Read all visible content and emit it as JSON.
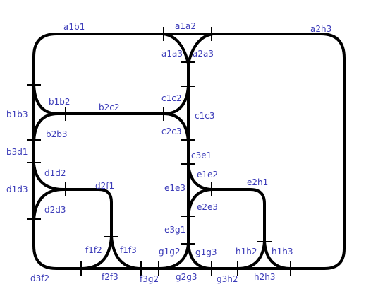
{
  "colors": {
    "track": "#000000",
    "label": "#3a3ab8",
    "background": "#ffffff"
  },
  "labels": {
    "a1b1": "a1b1",
    "a1a2": "a1a2",
    "a2h3": "a2h3",
    "a1a3": "a1a3",
    "a2a3": "a2a3",
    "b1b3": "b1b3",
    "b1b2": "b1b2",
    "b2c2": "b2c2",
    "c1c2": "c1c2",
    "c1c3": "c1c3",
    "b2b3": "b2b3",
    "c2c3": "c2c3",
    "b3d1": "b3d1",
    "c3e1": "c3e1",
    "d1d2": "d1d2",
    "e1e2": "e1e2",
    "d1d3": "d1d3",
    "d2f1": "d2f1",
    "e1e3": "e1e3",
    "e2h1": "e2h1",
    "d2d3": "d2d3",
    "e2e3": "e2e3",
    "e3g1": "e3g1",
    "f1f2": "f1f2",
    "f1f3": "f1f3",
    "g1g2": "g1g2",
    "g1g3": "g1g3",
    "h1h2": "h1h2",
    "h1h3": "h1h3",
    "d3f2": "d3f2",
    "f2f3": "f2f3",
    "f3g2": "f3g2",
    "g2g3": "g2g3",
    "g3h2": "g3h2",
    "h2h3": "h2h3"
  }
}
